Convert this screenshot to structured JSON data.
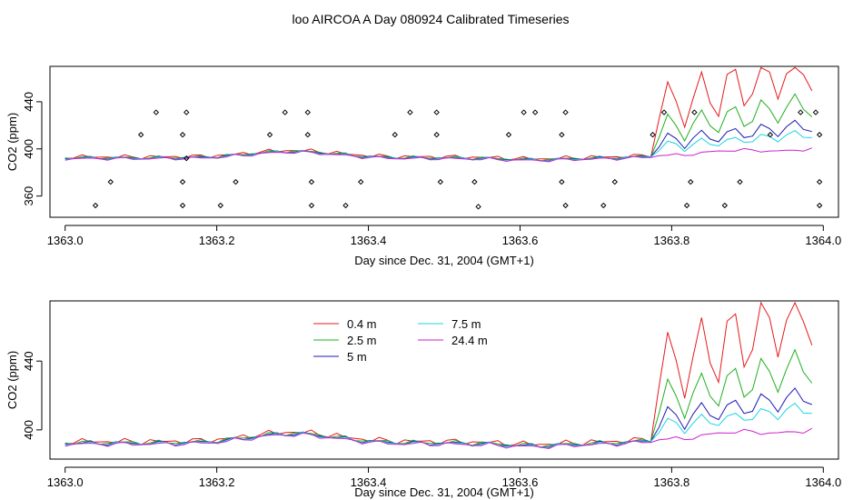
{
  "title": "loo AIRCOA A  Day 080924  Calibrated Timeseries",
  "chart_data": [
    {
      "type": "scatter",
      "xlabel": "Day since Dec. 31, 2004 (GMT+1)",
      "ylabel": "CO2 (ppm)",
      "xlim": [
        1362.98,
        1364.02
      ],
      "ylim": [
        342,
        470
      ],
      "xticks": [
        1363.0,
        1363.2,
        1363.4,
        1363.6,
        1363.8,
        1364.0
      ],
      "xtick_labels": [
        "1363.0",
        "1363.2",
        "1363.4",
        "1363.6",
        "1363.8",
        "1364.0"
      ],
      "yticks": [
        360,
        400,
        440
      ],
      "ytick_labels": [
        "360",
        "400",
        "440"
      ],
      "grid": false,
      "scatter_points": {
        "x": [
          1363.04,
          1363.06,
          1363.1,
          1363.12,
          1363.155,
          1363.155,
          1363.155,
          1363.16,
          1363.16,
          1363.205,
          1363.225,
          1363.27,
          1363.29,
          1363.32,
          1363.32,
          1363.325,
          1363.325,
          1363.37,
          1363.39,
          1363.435,
          1363.455,
          1363.49,
          1363.49,
          1363.495,
          1363.545,
          1363.54,
          1363.585,
          1363.605,
          1363.62,
          1363.655,
          1363.655,
          1363.66,
          1363.66,
          1363.71,
          1363.725,
          1363.775,
          1363.79,
          1363.82,
          1363.825,
          1363.83,
          1363.87,
          1363.89,
          1363.93,
          1363.97,
          1363.99,
          1363.995,
          1363.995,
          1363.995
        ],
        "y": [
          352,
          372,
          412,
          431,
          352,
          372,
          412,
          431,
          392,
          352,
          372,
          412,
          431,
          431,
          412,
          372,
          352,
          352,
          372,
          412,
          431,
          431,
          412,
          372,
          351,
          372,
          412,
          431,
          431,
          412,
          372,
          352,
          431,
          352,
          372,
          412,
          431,
          352,
          372,
          431,
          352,
          372,
          412,
          431,
          431,
          412,
          372,
          352
        ]
      },
      "series": [
        {
          "name": "0.4 m",
          "color": "#e41a1c"
        },
        {
          "name": "2.5 m",
          "color": "#1faf1f"
        },
        {
          "name": "5 m",
          "color": "#1a1ab5"
        },
        {
          "name": "7.5 m",
          "color": "#1ad5e0"
        },
        {
          "name": "24.4 m",
          "color": "#cc22cc"
        }
      ]
    },
    {
      "type": "line",
      "xlabel": "Day since Dec. 31, 2004 (GMT+1)",
      "ylabel": "CO2 (ppm)",
      "xlim": [
        1362.98,
        1364.02
      ],
      "ylim": [
        383,
        475
      ],
      "xticks": [
        1363.0,
        1363.2,
        1363.4,
        1363.6,
        1363.8,
        1364.0
      ],
      "xtick_labels": [
        "1363.0",
        "1363.2",
        "1363.4",
        "1363.6",
        "1363.8",
        "1364.0"
      ],
      "yticks": [
        400,
        440
      ],
      "ytick_labels": [
        "400",
        "440"
      ],
      "grid": false,
      "legend_placement": "top-center",
      "series": [
        {
          "name": "0.4 m",
          "color": "#e41a1c"
        },
        {
          "name": "2.5 m",
          "color": "#1faf1f"
        },
        {
          "name": "5 m",
          "color": "#1a1ab5"
        },
        {
          "name": "7.5 m",
          "color": "#1ad5e0"
        },
        {
          "name": "24.4 m",
          "color": "#cc22cc"
        }
      ]
    }
  ]
}
